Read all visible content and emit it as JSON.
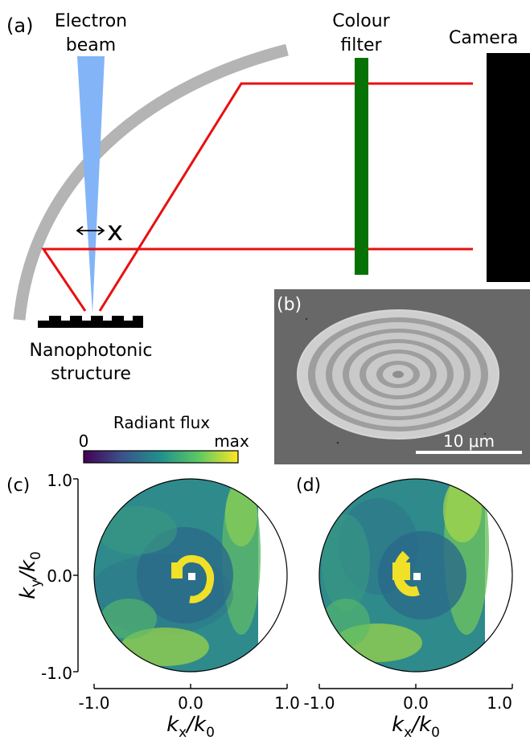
{
  "panel_a": {
    "label": "(a)",
    "electron_beam_lines": [
      "Electron",
      "beam"
    ],
    "colour_filter_lines": [
      "Colour",
      "filter"
    ],
    "camera": "Camera",
    "displacement": "x",
    "structure_lines": [
      "Nanophotonic",
      "structure"
    ],
    "colors": {
      "beam": "#82b4f7",
      "filter": "#067206",
      "ray": "#e81010",
      "mirror": "#b4b4b4",
      "camera": "#000000"
    }
  },
  "panel_b": {
    "label": "(b)",
    "scale_bar": "10 μm"
  },
  "colorbar": {
    "title": "Radiant flux",
    "min_label": "0",
    "max_label": "max",
    "colormap": [
      "#440154",
      "#3b528b",
      "#21918c",
      "#5ec962",
      "#fde725"
    ]
  },
  "panel_c": {
    "label": "(c)",
    "y_axis": {
      "label_main": "k",
      "label_sub": "y",
      "label_div": "/k",
      "label_sub2": "0",
      "ticks": [
        "1.0",
        "0.0",
        "-1.0"
      ]
    },
    "x_axis": {
      "label_main": "k",
      "label_sub": "x",
      "label_div": "/k",
      "label_sub2": "0",
      "ticks": [
        "-1.0",
        "0.0",
        "1.0"
      ]
    }
  },
  "panel_d": {
    "label": "(d)",
    "x_axis": {
      "label_main": "k",
      "label_sub": "x",
      "label_div": "/k",
      "label_sub2": "0",
      "ticks": [
        "-1.0",
        "0.0",
        "1.0"
      ]
    }
  }
}
